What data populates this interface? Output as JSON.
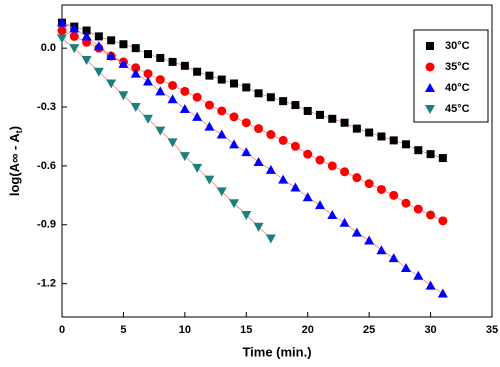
{
  "chart_data": {
    "type": "scatter",
    "x_label": "Time (min.)",
    "y_label": {
      "main": "log(A∞ - A",
      "sub": "t",
      "end": ")"
    },
    "xlim": [
      0,
      35
    ],
    "xticks": [
      0,
      5,
      10,
      15,
      20,
      25,
      30,
      35
    ],
    "ylim": [
      -1.37,
      0.22
    ],
    "yticks": [
      {
        "value": 0,
        "label": "0.0"
      },
      -0.3,
      -0.6,
      -0.9,
      -1.2
    ],
    "legend": "upper right",
    "series": [
      {
        "name": "30°C",
        "color": "#000000",
        "marker": "square",
        "x": [
          0,
          1,
          2,
          3,
          4,
          5,
          6,
          7,
          8,
          9,
          10,
          11,
          12,
          13,
          14,
          15,
          16,
          17,
          18,
          19,
          20,
          21,
          22,
          23,
          24,
          25,
          26,
          27,
          28,
          29,
          30,
          31
        ],
        "values": [
          0.13,
          0.11,
          0.09,
          0.06,
          0.04,
          0.02,
          0.0,
          -0.03,
          -0.05,
          -0.07,
          -0.09,
          -0.12,
          -0.14,
          -0.16,
          -0.18,
          -0.2,
          -0.23,
          -0.25,
          -0.27,
          -0.29,
          -0.32,
          -0.34,
          -0.36,
          -0.38,
          -0.41,
          -0.43,
          -0.45,
          -0.47,
          -0.49,
          -0.52,
          -0.54,
          -0.56
        ]
      },
      {
        "name": "35°C",
        "color": "#ff0000",
        "marker": "circle",
        "x": [
          0,
          1,
          2,
          3,
          4,
          5,
          6,
          7,
          8,
          9,
          10,
          11,
          12,
          13,
          14,
          15,
          16,
          17,
          18,
          19,
          20,
          21,
          22,
          23,
          24,
          25,
          26,
          27,
          28,
          29,
          30,
          31
        ],
        "values": [
          0.09,
          0.06,
          0.03,
          0.0,
          -0.04,
          -0.07,
          -0.1,
          -0.13,
          -0.16,
          -0.19,
          -0.22,
          -0.25,
          -0.29,
          -0.32,
          -0.35,
          -0.38,
          -0.41,
          -0.44,
          -0.47,
          -0.5,
          -0.54,
          -0.57,
          -0.6,
          -0.63,
          -0.66,
          -0.69,
          -0.72,
          -0.75,
          -0.79,
          -0.82,
          -0.85,
          -0.88
        ]
      },
      {
        "name": "40°C",
        "color": "#0000ff",
        "marker": "triangle-up",
        "x": [
          0,
          1,
          2,
          3,
          4,
          5,
          6,
          7,
          8,
          9,
          10,
          11,
          12,
          13,
          14,
          15,
          16,
          17,
          18,
          19,
          20,
          21,
          22,
          23,
          24,
          25,
          26,
          27,
          28,
          29,
          30,
          31
        ],
        "values": [
          0.13,
          0.1,
          0.06,
          0.01,
          -0.04,
          -0.08,
          -0.13,
          -0.17,
          -0.22,
          -0.26,
          -0.31,
          -0.35,
          -0.4,
          -0.44,
          -0.49,
          -0.53,
          -0.58,
          -0.62,
          -0.67,
          -0.71,
          -0.76,
          -0.8,
          -0.85,
          -0.89,
          -0.94,
          -0.98,
          -1.03,
          -1.07,
          -1.12,
          -1.16,
          -1.21,
          -1.25
        ]
      },
      {
        "name": "45°C",
        "color": "#1a7f7f",
        "marker": "triangle-down",
        "x": [
          0,
          1,
          2,
          3,
          4,
          5,
          6,
          7,
          8,
          9,
          10,
          11,
          12,
          13,
          14,
          15,
          16,
          17
        ],
        "values": [
          0.05,
          0.0,
          -0.06,
          -0.12,
          -0.18,
          -0.24,
          -0.3,
          -0.36,
          -0.42,
          -0.48,
          -0.55,
          -0.61,
          -0.67,
          -0.73,
          -0.79,
          -0.85,
          -0.91,
          -0.97
        ]
      }
    ]
  }
}
